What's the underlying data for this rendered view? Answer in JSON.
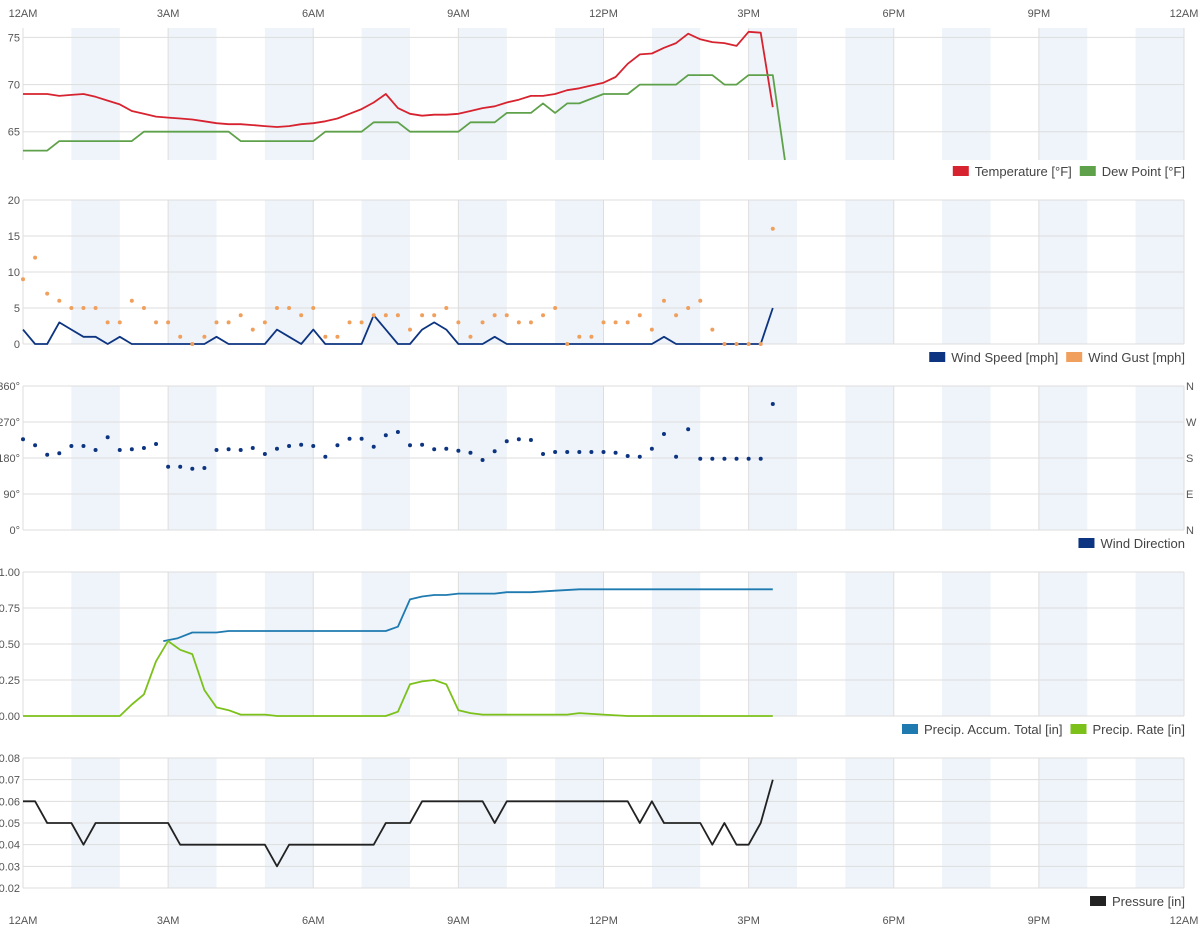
{
  "time_axis": {
    "labels": [
      "12AM",
      "3AM",
      "6AM",
      "9AM",
      "12PM",
      "3PM",
      "6PM",
      "9PM",
      "12AM"
    ],
    "label_hours": [
      0,
      3,
      6,
      9,
      12,
      15,
      18,
      21,
      24
    ]
  },
  "colors": {
    "temperature": "#d7232f",
    "dew_point": "#5fa14a",
    "wind_speed": "#0c3480",
    "wind_gust": "#f0a05c",
    "wind_direction": "#0c3480",
    "precip_accum": "#1f7ab0",
    "precip_rate": "#7cc11a",
    "pressure": "#222222",
    "stripe": "#eef4fa",
    "grid": "#dddddd"
  },
  "chart_data": [
    {
      "type": "line",
      "x_unit": "hour of day",
      "x_range": [
        0,
        24
      ],
      "ylim": [
        62,
        76
      ],
      "yticks": [
        {
          "value": 65,
          "label": "65"
        },
        {
          "value": 70,
          "label": "70"
        },
        {
          "value": 75,
          "label": "75"
        }
      ],
      "series": [
        {
          "name": "Temperature [°F]",
          "color_key": "temperature",
          "x": [
            0,
            0.25,
            0.5,
            0.75,
            1,
            1.25,
            1.5,
            1.75,
            2,
            2.25,
            2.5,
            2.75,
            3,
            3.25,
            3.5,
            3.75,
            4,
            4.25,
            4.5,
            4.75,
            5,
            5.25,
            5.5,
            5.75,
            6,
            6.25,
            6.5,
            6.75,
            7,
            7.25,
            7.5,
            7.75,
            8,
            8.25,
            8.5,
            8.75,
            9,
            9.25,
            9.5,
            9.75,
            10,
            10.25,
            10.5,
            10.75,
            11,
            11.25,
            11.5,
            11.75,
            12,
            12.25,
            12.5,
            12.75,
            13,
            13.25,
            13.5,
            13.75,
            14,
            14.25,
            14.5,
            14.75,
            15,
            15.25,
            15.5
          ],
          "values": [
            69,
            69,
            69,
            68.8,
            68.9,
            69,
            68.7,
            68.3,
            67.9,
            67.2,
            66.9,
            66.6,
            66.5,
            66.4,
            66.3,
            66.1,
            65.9,
            65.8,
            65.8,
            65.7,
            65.6,
            65.5,
            65.6,
            65.8,
            65.9,
            66.1,
            66.4,
            66.9,
            67.4,
            68.1,
            69,
            67.5,
            66.9,
            66.7,
            66.8,
            66.8,
            66.9,
            67.2,
            67.5,
            67.7,
            68.1,
            68.4,
            68.8,
            68.8,
            69,
            69.4,
            69.6,
            69.9,
            70.2,
            70.8,
            72.2,
            73.2,
            73.3,
            73.9,
            74.4,
            75.4,
            74.8,
            74.5,
            74.4,
            74.1,
            75.6,
            75.5,
            67.6
          ]
        },
        {
          "name": "Dew Point [°F]",
          "color_key": "dew_point",
          "x": [
            0,
            0.5,
            0.75,
            1.75,
            2,
            2.25,
            2.5,
            3,
            3.5,
            4,
            4.25,
            4.5,
            5,
            5.5,
            6,
            6.25,
            6.5,
            7,
            7.25,
            7.5,
            7.75,
            8,
            8.5,
            9,
            9.25,
            9.75,
            10,
            10.5,
            10.75,
            11,
            11.25,
            11.5,
            12,
            12.5,
            12.75,
            13,
            13.5,
            13.75,
            14,
            14.25,
            14.5,
            14.75,
            15,
            15.25,
            15.5,
            15.75
          ],
          "values": [
            63,
            63,
            64,
            64,
            64,
            64,
            65,
            65,
            65,
            65,
            65,
            64,
            64,
            64,
            64,
            65,
            65,
            65,
            66,
            66,
            66,
            65,
            65,
            65,
            66,
            66,
            67,
            67,
            68,
            67,
            68,
            68,
            69,
            69,
            70,
            70,
            70,
            71,
            71,
            71,
            70,
            70,
            71,
            71,
            71,
            62
          ]
        }
      ]
    },
    {
      "type": "line",
      "x_unit": "hour of day",
      "x_range": [
        0,
        24
      ],
      "ylim": [
        0,
        20
      ],
      "yticks": [
        {
          "value": 0,
          "label": "0"
        },
        {
          "value": 5,
          "label": "5"
        },
        {
          "value": 10,
          "label": "10"
        },
        {
          "value": 15,
          "label": "15"
        },
        {
          "value": 20,
          "label": "20"
        }
      ],
      "series": [
        {
          "name": "Wind Speed [mph]",
          "color_key": "wind_speed",
          "style": "line",
          "x": [
            0,
            0.25,
            0.5,
            0.75,
            1,
            1.25,
            1.5,
            1.75,
            2,
            2.25,
            2.5,
            3,
            3.5,
            3.75,
            4,
            4.25,
            4.5,
            5,
            5.25,
            5.5,
            5.75,
            6,
            6.25,
            6.5,
            6.75,
            7,
            7.25,
            7.5,
            7.75,
            8,
            8.25,
            8.5,
            8.75,
            9,
            9.25,
            9.5,
            9.75,
            10,
            10.25,
            10.5,
            13,
            13.25,
            13.5,
            14,
            15,
            15.25,
            15.5
          ],
          "values": [
            2,
            0,
            0,
            3,
            2,
            1,
            1,
            0,
            1,
            0,
            0,
            0,
            0,
            0,
            1,
            0,
            0,
            0,
            2,
            1,
            0,
            2,
            0,
            0,
            0,
            0,
            4,
            2,
            0,
            0,
            2,
            3,
            2,
            0,
            0,
            0,
            1,
            0,
            0,
            0,
            0,
            1,
            0,
            0,
            0,
            0,
            5
          ]
        },
        {
          "name": "Wind Gust [mph]",
          "color_key": "wind_gust",
          "style": "dots",
          "x": [
            0,
            0.25,
            0.5,
            0.75,
            1,
            1.25,
            1.5,
            1.75,
            2,
            2.25,
            2.5,
            2.75,
            3,
            3.25,
            3.5,
            3.75,
            4,
            4.25,
            4.5,
            4.75,
            5,
            5.25,
            5.5,
            5.75,
            6,
            6.25,
            6.5,
            6.75,
            7,
            7.25,
            7.5,
            7.75,
            8,
            8.25,
            8.5,
            8.75,
            9,
            9.25,
            9.5,
            9.75,
            10,
            10.25,
            10.5,
            10.75,
            11,
            11.25,
            11.5,
            11.75,
            12,
            12.25,
            12.5,
            12.75,
            13,
            13.25,
            13.5,
            13.75,
            14,
            14.25,
            14.5,
            14.75,
            15,
            15.25,
            15.5
          ],
          "values": [
            9,
            12,
            7,
            6,
            5,
            5,
            5,
            3,
            3,
            6,
            5,
            3,
            3,
            1,
            0,
            1,
            3,
            3,
            4,
            2,
            3,
            5,
            5,
            4,
            5,
            1,
            1,
            3,
            3,
            4,
            4,
            4,
            2,
            4,
            4,
            5,
            3,
            1,
            3,
            4,
            4,
            3,
            3,
            4,
            5,
            0,
            1,
            1,
            3,
            3,
            3,
            4,
            2,
            6,
            4,
            5,
            6,
            2,
            0,
            0,
            0,
            0,
            16
          ]
        }
      ]
    },
    {
      "type": "scatter",
      "x_unit": "hour of day",
      "x_range": [
        0,
        24
      ],
      "ylim": [
        0,
        360
      ],
      "yticks": [
        {
          "value": 0,
          "label": "0°"
        },
        {
          "value": 90,
          "label": "90°"
        },
        {
          "value": 180,
          "label": "180°"
        },
        {
          "value": 270,
          "label": "270°"
        },
        {
          "value": 360,
          "label": "360°"
        }
      ],
      "yticks_right": [
        {
          "value": 0,
          "label": "N"
        },
        {
          "value": 90,
          "label": "E"
        },
        {
          "value": 180,
          "label": "S"
        },
        {
          "value": 270,
          "label": "W"
        },
        {
          "value": 360,
          "label": "N"
        }
      ],
      "series": [
        {
          "name": "Wind Direction",
          "color_key": "wind_direction",
          "x": [
            0,
            0.25,
            0.5,
            0.75,
            1,
            1.25,
            1.5,
            1.75,
            2,
            2.25,
            2.5,
            2.75,
            3,
            3.25,
            3.5,
            3.75,
            4,
            4.25,
            4.5,
            4.75,
            5,
            5.25,
            5.5,
            5.75,
            6,
            6.25,
            6.5,
            6.75,
            7,
            7.25,
            7.5,
            7.75,
            8,
            8.25,
            8.5,
            8.75,
            9,
            9.25,
            9.5,
            9.75,
            10,
            10.25,
            10.5,
            10.75,
            11,
            11.25,
            11.5,
            11.75,
            12,
            12.25,
            12.5,
            12.75,
            13,
            13.25,
            13.5,
            13.75,
            14,
            14.25,
            14.5,
            14.75,
            15,
            15.25,
            15.5
          ],
          "values": [
            227,
            212,
            188,
            192,
            210,
            210,
            200,
            232,
            200,
            202,
            205,
            215,
            158,
            158,
            153,
            155,
            200,
            202,
            200,
            205,
            190,
            203,
            210,
            213,
            210,
            183,
            212,
            228,
            228,
            208,
            237,
            245,
            212,
            213,
            202,
            203,
            198,
            193,
            175,
            197,
            222,
            227,
            225,
            190,
            195,
            195,
            195,
            195,
            195,
            193,
            185,
            183,
            203,
            240,
            183,
            252,
            178,
            178,
            178,
            178,
            178,
            178,
            315
          ]
        }
      ]
    },
    {
      "type": "line",
      "x_unit": "hour of day",
      "x_range": [
        0,
        24
      ],
      "ylim": [
        0,
        1
      ],
      "yticks": [
        {
          "value": 0,
          "label": "0.00"
        },
        {
          "value": 0.25,
          "label": "0.25"
        },
        {
          "value": 0.5,
          "label": "0.50"
        },
        {
          "value": 0.75,
          "label": "0.75"
        },
        {
          "value": 1,
          "label": "1.00"
        }
      ],
      "series": [
        {
          "name": "Precip. Accum. Total [in]",
          "color_key": "precip_accum",
          "x": [
            2.9,
            3.2,
            3.5,
            4,
            4.25,
            7.5,
            7.75,
            8,
            8.25,
            8.5,
            8.75,
            9,
            9.5,
            9.75,
            10,
            10.5,
            11,
            11.5,
            12,
            15.5
          ],
          "values": [
            0.52,
            0.54,
            0.58,
            0.58,
            0.59,
            0.59,
            0.62,
            0.81,
            0.83,
            0.84,
            0.84,
            0.85,
            0.85,
            0.85,
            0.86,
            0.86,
            0.87,
            0.88,
            0.88,
            0.88
          ]
        },
        {
          "name": "Precip. Rate [in]",
          "color_key": "precip_rate",
          "x": [
            0,
            1.75,
            2,
            2.25,
            2.5,
            2.75,
            3,
            3.25,
            3.5,
            3.75,
            4,
            4.25,
            4.5,
            5,
            5.25,
            7.5,
            7.75,
            8,
            8.25,
            8.5,
            8.75,
            9,
            9.25,
            9.5,
            10,
            11,
            11.25,
            11.5,
            12,
            12.5,
            15.5
          ],
          "values": [
            0,
            0,
            0,
            0.08,
            0.15,
            0.38,
            0.52,
            0.46,
            0.43,
            0.18,
            0.06,
            0.04,
            0.01,
            0.01,
            0,
            0,
            0.03,
            0.22,
            0.24,
            0.25,
            0.22,
            0.04,
            0.02,
            0.01,
            0.01,
            0.01,
            0.01,
            0.02,
            0.01,
            0,
            0
          ]
        }
      ]
    },
    {
      "type": "line",
      "x_unit": "hour of day",
      "x_range": [
        0,
        24
      ],
      "ylim": [
        0.02,
        0.08
      ],
      "yticks": [
        {
          "value": 0.02,
          "label": "0.02"
        },
        {
          "value": 0.03,
          "label": "0.03"
        },
        {
          "value": 0.04,
          "label": "0.04"
        },
        {
          "value": 0.05,
          "label": "0.05"
        },
        {
          "value": 0.06,
          "label": "0.06"
        },
        {
          "value": 0.07,
          "label": "0.07"
        },
        {
          "value": 0.08,
          "label": "0.08"
        }
      ],
      "series": [
        {
          "name": "Pressure [in]",
          "color_key": "pressure",
          "x": [
            0,
            0.25,
            0.5,
            1,
            1.25,
            1.5,
            1.75,
            2,
            2.5,
            3,
            3.25,
            3.5,
            4,
            4.5,
            5,
            5.25,
            5.5,
            6,
            6.5,
            7,
            7.25,
            7.5,
            7.75,
            8,
            8.25,
            8.5,
            9,
            9.5,
            9.75,
            10,
            10.5,
            11,
            12,
            12.5,
            12.75,
            13,
            13.25,
            13.5,
            14,
            14.25,
            14.5,
            14.75,
            15,
            15.25,
            15.5
          ],
          "values": [
            0.06,
            0.06,
            0.05,
            0.05,
            0.04,
            0.05,
            0.05,
            0.05,
            0.05,
            0.05,
            0.04,
            0.04,
            0.04,
            0.04,
            0.04,
            0.03,
            0.04,
            0.04,
            0.04,
            0.04,
            0.04,
            0.05,
            0.05,
            0.05,
            0.06,
            0.06,
            0.06,
            0.06,
            0.05,
            0.06,
            0.06,
            0.06,
            0.06,
            0.06,
            0.05,
            0.06,
            0.05,
            0.05,
            0.05,
            0.04,
            0.05,
            0.04,
            0.04,
            0.05,
            0.07
          ]
        }
      ]
    }
  ]
}
